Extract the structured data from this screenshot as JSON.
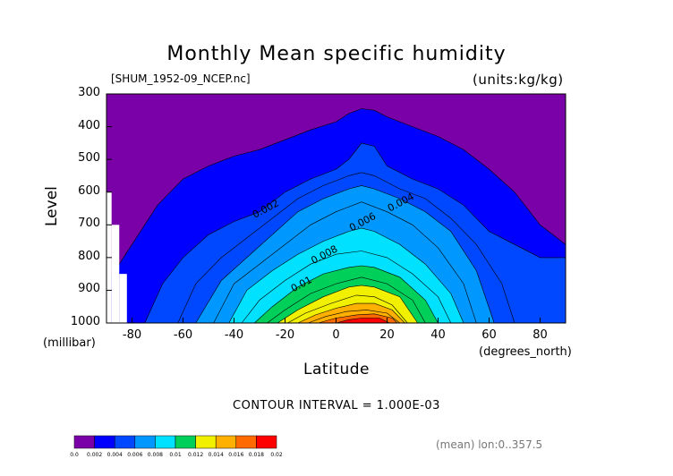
{
  "header": {
    "title": "Monthly Mean specific humidity",
    "file": "[SHUM_1952-09_NCEP.nc]",
    "units": "(units:kg/kg)"
  },
  "footer": {
    "contour_interval": "CONTOUR INTERVAL = 1.000E-03",
    "mean_note": "(mean) lon:0..357.5"
  },
  "chart_data": {
    "type": "heatmap",
    "title": "Monthly Mean specific humidity",
    "xlabel": "Latitude",
    "ylabel": "Level",
    "x_unit": "(degrees_north)",
    "y_unit": "(millibar)",
    "xlim": [
      -90,
      90
    ],
    "ylim": [
      1000,
      300
    ],
    "x_ticks": [
      -80,
      -60,
      -40,
      -20,
      0,
      20,
      40,
      60,
      80
    ],
    "y_ticks": [
      300,
      400,
      500,
      600,
      700,
      800,
      900,
      1000
    ],
    "x_tick_labels": [
      "-80",
      "-60",
      "-40",
      "-20",
      "0",
      "20",
      "40",
      "60",
      "80"
    ],
    "y_tick_labels": [
      "300",
      "400",
      "500",
      "600",
      "700",
      "800",
      "900",
      "1000"
    ],
    "contour_levels": [
      0.002,
      0.004,
      0.006,
      0.008,
      0.01,
      0.012,
      0.014,
      0.016,
      0.018
    ],
    "contour_labels": [
      {
        "text": "0.002",
        "lat": -27,
        "level": 660
      },
      {
        "text": "0.004",
        "lat": 26,
        "level": 640
      },
      {
        "text": "0.006",
        "lat": 11,
        "level": 700
      },
      {
        "text": "0.008",
        "lat": -4,
        "level": 800
      },
      {
        "text": "0.01",
        "lat": -13,
        "level": 890
      }
    ],
    "colorbar": {
      "labels": [
        "0.0",
        "0.002",
        "0.004",
        "0.006",
        "0.008",
        "0.01",
        "0.012",
        "0.014",
        "0.016",
        "0.018",
        "0.02"
      ],
      "colors": [
        "#7a00a8",
        "#0000ff",
        "#0048ff",
        "#0098ff",
        "#00e0ff",
        "#00d05a",
        "#f0f000",
        "#ffb000",
        "#ff6a00",
        "#ff0000"
      ]
    },
    "missing_region": [
      {
        "lat_from": -90,
        "lat_to": -88,
        "level_top": 600
      },
      {
        "lat_from": -88,
        "lat_to": -85,
        "level_top": 700
      },
      {
        "lat_from": -85,
        "lat_to": -82,
        "level_top": 850
      }
    ],
    "isolines": [
      {
        "value": 0.002,
        "points": [
          [
            -90,
            880
          ],
          [
            -80,
            760
          ],
          [
            -70,
            640
          ],
          [
            -60,
            560
          ],
          [
            -50,
            520
          ],
          [
            -40,
            490
          ],
          [
            -30,
            470
          ],
          [
            -20,
            440
          ],
          [
            -10,
            410
          ],
          [
            0,
            385
          ],
          [
            5,
            360
          ],
          [
            10,
            345
          ],
          [
            15,
            350
          ],
          [
            20,
            370
          ],
          [
            30,
            400
          ],
          [
            40,
            430
          ],
          [
            50,
            470
          ],
          [
            60,
            530
          ],
          [
            70,
            600
          ],
          [
            80,
            700
          ],
          [
            90,
            760
          ]
        ]
      },
      {
        "value": 0.004,
        "points": [
          [
            -75,
            1000
          ],
          [
            -68,
            880
          ],
          [
            -60,
            800
          ],
          [
            -50,
            730
          ],
          [
            -40,
            690
          ],
          [
            -30,
            660
          ],
          [
            -20,
            600
          ],
          [
            -10,
            560
          ],
          [
            0,
            530
          ],
          [
            5,
            500
          ],
          [
            10,
            450
          ],
          [
            15,
            460
          ],
          [
            20,
            520
          ],
          [
            30,
            560
          ],
          [
            40,
            590
          ],
          [
            50,
            640
          ],
          [
            60,
            720
          ],
          [
            70,
            760
          ],
          [
            80,
            800
          ],
          [
            90,
            800
          ]
        ]
      },
      {
        "value": 0.005,
        "points": [
          [
            -62,
            1000
          ],
          [
            -55,
            880
          ],
          [
            -45,
            800
          ],
          [
            -35,
            740
          ],
          [
            -25,
            680
          ],
          [
            -15,
            620
          ],
          [
            -5,
            580
          ],
          [
            5,
            550
          ],
          [
            10,
            540
          ],
          [
            15,
            550
          ],
          [
            25,
            590
          ],
          [
            35,
            620
          ],
          [
            45,
            680
          ],
          [
            55,
            760
          ],
          [
            65,
            880
          ],
          [
            70,
            1000
          ]
        ]
      },
      {
        "value": 0.006,
        "points": [
          [
            -55,
            1000
          ],
          [
            -45,
            870
          ],
          [
            -35,
            800
          ],
          [
            -25,
            730
          ],
          [
            -15,
            660
          ],
          [
            -5,
            620
          ],
          [
            5,
            590
          ],
          [
            10,
            580
          ],
          [
            15,
            590
          ],
          [
            25,
            620
          ],
          [
            35,
            660
          ],
          [
            45,
            720
          ],
          [
            55,
            840
          ],
          [
            62,
            1000
          ]
        ]
      },
      {
        "value": 0.007,
        "points": [
          [
            -48,
            1000
          ],
          [
            -40,
            880
          ],
          [
            -30,
            820
          ],
          [
            -20,
            760
          ],
          [
            -10,
            700
          ],
          [
            0,
            660
          ],
          [
            10,
            630
          ],
          [
            20,
            660
          ],
          [
            30,
            700
          ],
          [
            40,
            770
          ],
          [
            50,
            880
          ],
          [
            55,
            1000
          ]
        ]
      },
      {
        "value": 0.008,
        "points": [
          [
            -42,
            1000
          ],
          [
            -35,
            900
          ],
          [
            -25,
            840
          ],
          [
            -15,
            790
          ],
          [
            -5,
            750
          ],
          [
            5,
            720
          ],
          [
            10,
            710
          ],
          [
            15,
            720
          ],
          [
            25,
            760
          ],
          [
            35,
            820
          ],
          [
            45,
            910
          ],
          [
            50,
            1000
          ]
        ]
      },
      {
        "value": 0.009,
        "points": [
          [
            -37,
            1000
          ],
          [
            -30,
            930
          ],
          [
            -20,
            870
          ],
          [
            -10,
            820
          ],
          [
            0,
            790
          ],
          [
            10,
            780
          ],
          [
            20,
            800
          ],
          [
            30,
            850
          ],
          [
            40,
            920
          ],
          [
            45,
            1000
          ]
        ]
      },
      {
        "value": 0.01,
        "points": [
          [
            -32,
            1000
          ],
          [
            -25,
            950
          ],
          [
            -15,
            890
          ],
          [
            -5,
            850
          ],
          [
            5,
            830
          ],
          [
            10,
            825
          ],
          [
            15,
            830
          ],
          [
            25,
            860
          ],
          [
            35,
            930
          ],
          [
            40,
            1000
          ]
        ]
      },
      {
        "value": 0.011,
        "points": [
          [
            -27,
            1000
          ],
          [
            -20,
            960
          ],
          [
            -10,
            910
          ],
          [
            0,
            880
          ],
          [
            10,
            860
          ],
          [
            20,
            880
          ],
          [
            30,
            930
          ],
          [
            35,
            1000
          ]
        ]
      },
      {
        "value": 0.012,
        "points": [
          [
            -23,
            1000
          ],
          [
            -15,
            960
          ],
          [
            -5,
            920
          ],
          [
            5,
            890
          ],
          [
            10,
            885
          ],
          [
            15,
            890
          ],
          [
            25,
            920
          ],
          [
            32,
            1000
          ]
        ]
      },
      {
        "value": 0.013,
        "points": [
          [
            -19,
            1000
          ],
          [
            -12,
            970
          ],
          [
            -2,
            940
          ],
          [
            8,
            915
          ],
          [
            15,
            920
          ],
          [
            22,
            945
          ],
          [
            28,
            1000
          ]
        ]
      },
      {
        "value": 0.014,
        "points": [
          [
            -15,
            1000
          ],
          [
            -8,
            975
          ],
          [
            0,
            955
          ],
          [
            8,
            940
          ],
          [
            15,
            940
          ],
          [
            22,
            960
          ],
          [
            27,
            1000
          ]
        ]
      },
      {
        "value": 0.015,
        "points": [
          [
            -11,
            1000
          ],
          [
            -4,
            980
          ],
          [
            4,
            965
          ],
          [
            12,
            960
          ],
          [
            20,
            970
          ],
          [
            25,
            1000
          ]
        ]
      },
      {
        "value": 0.016,
        "points": [
          [
            -7,
            1000
          ],
          [
            0,
            985
          ],
          [
            8,
            975
          ],
          [
            15,
            972
          ],
          [
            22,
            985
          ],
          [
            24,
            1000
          ]
        ]
      },
      {
        "value": 0.018,
        "points": [
          [
            0,
            1000
          ],
          [
            5,
            990
          ],
          [
            10,
            985
          ],
          [
            17,
            985
          ],
          [
            21,
            1000
          ]
        ]
      }
    ]
  }
}
